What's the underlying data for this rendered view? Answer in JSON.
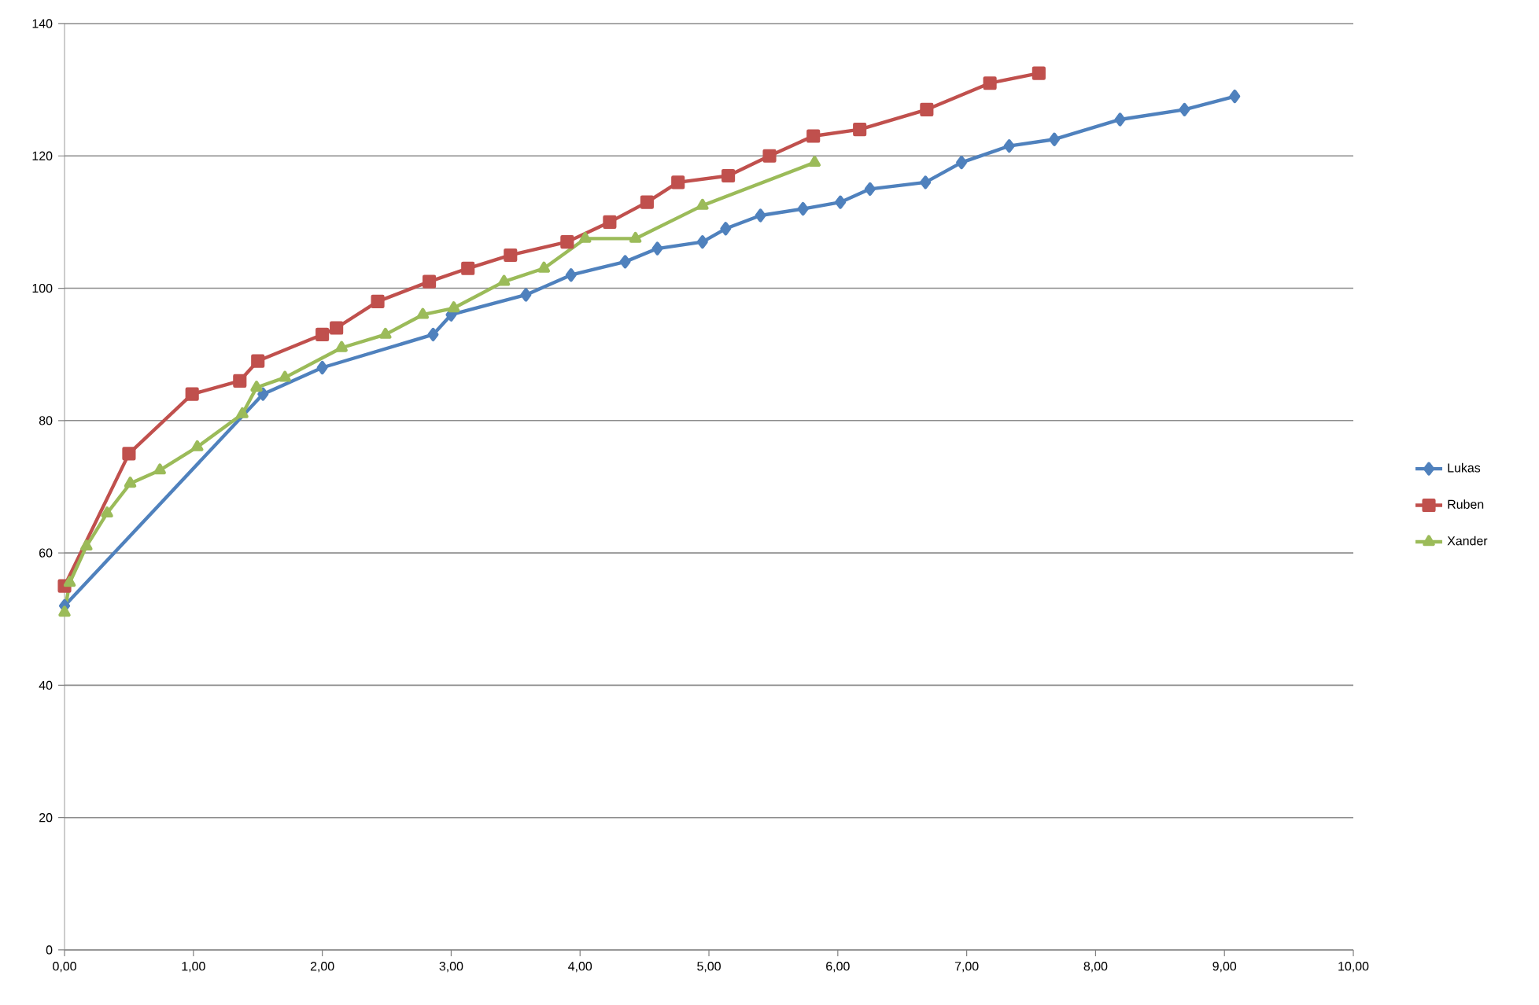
{
  "chart_data": {
    "type": "line",
    "series": [
      {
        "name": "Lukas",
        "color": "#4f81bd",
        "marker": "diamond",
        "x": [
          0,
          1.54,
          2.0,
          2.86,
          3.0,
          3.58,
          3.93,
          4.35,
          4.6,
          4.95,
          5.13,
          5.4,
          5.73,
          6.02,
          6.25,
          6.68,
          6.96,
          7.33,
          7.68,
          8.19,
          8.69,
          9.08
        ],
        "values": [
          52,
          84,
          88,
          93,
          96,
          99,
          102,
          104,
          106,
          107,
          109,
          111,
          112,
          113,
          115,
          116,
          119,
          121.5,
          122.5,
          125.5,
          127,
          129
        ]
      },
      {
        "name": "Ruben",
        "color": "#c0504d",
        "marker": "square",
        "x": [
          0,
          0.5,
          0.99,
          1.36,
          1.5,
          2.0,
          2.11,
          2.43,
          2.83,
          3.13,
          3.46,
          3.9,
          4.23,
          4.52,
          4.76,
          5.15,
          5.47,
          5.81,
          6.17,
          6.69,
          7.18,
          7.56
        ],
        "values": [
          55,
          75,
          84,
          86,
          89,
          93,
          94,
          98,
          101,
          103,
          105,
          107,
          110,
          113,
          116,
          117,
          120,
          123,
          124,
          127,
          131,
          132.5
        ]
      },
      {
        "name": "Xander",
        "color": "#9bbb59",
        "marker": "triangle",
        "x": [
          0,
          0.04,
          0.17,
          0.33,
          0.51,
          0.74,
          1.03,
          1.38,
          1.49,
          1.71,
          2.15,
          2.49,
          2.78,
          3.02,
          3.41,
          3.72,
          4.04,
          4.43,
          4.95,
          5.82
        ],
        "values": [
          51,
          55.5,
          61,
          66,
          70.5,
          72.5,
          76,
          81,
          85,
          86.5,
          91,
          93,
          96,
          97,
          101,
          103,
          107.5,
          107.5,
          112.5,
          119
        ]
      }
    ],
    "xlim": [
      0,
      10
    ],
    "ylim": [
      0,
      140
    ],
    "xticks": [
      {
        "value": 0,
        "label": "0,00"
      },
      {
        "value": 1,
        "label": "1,00"
      },
      {
        "value": 2,
        "label": "2,00"
      },
      {
        "value": 3,
        "label": "3,00"
      },
      {
        "value": 4,
        "label": "4,00"
      },
      {
        "value": 5,
        "label": "5,00"
      },
      {
        "value": 6,
        "label": "6,00"
      },
      {
        "value": 7,
        "label": "7,00"
      },
      {
        "value": 8,
        "label": "8,00"
      },
      {
        "value": 9,
        "label": "9,00"
      },
      {
        "value": 10,
        "label": "10,00"
      }
    ],
    "yticks": [
      0,
      20,
      40,
      60,
      80,
      100,
      120,
      140
    ],
    "grid": "y",
    "legend": "right",
    "line_style": "solid"
  }
}
